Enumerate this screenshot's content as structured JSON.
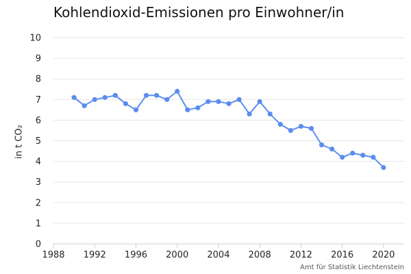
{
  "chart_data": {
    "type": "line",
    "title": "Kohlendioxid-Emissionen pro Einwohner/in",
    "xlabel": "",
    "ylabel": "in t CO₂",
    "source": "Amt für Statistik Liechtenstein",
    "xlim": [
      1988,
      2022
    ],
    "ylim": [
      0,
      10
    ],
    "x_ticks": [
      1988,
      1992,
      1996,
      2000,
      2004,
      2008,
      2012,
      2016,
      2020
    ],
    "y_ticks": [
      0,
      1,
      2,
      3,
      4,
      5,
      6,
      7,
      8,
      9,
      10
    ],
    "grid": "horizontal",
    "color": "#5b8def",
    "series": [
      {
        "x": [
          1990,
          1991,
          1992,
          1993,
          1994,
          1995,
          1996,
          1997,
          1998,
          1999,
          2000,
          2001,
          2002,
          2003,
          2004,
          2005,
          2006,
          2007,
          2008,
          2009,
          2010,
          2011,
          2012,
          2013,
          2014,
          2015,
          2016,
          2017,
          2018,
          2019,
          2020
        ],
        "y": [
          7.1,
          6.7,
          7.0,
          7.1,
          7.2,
          6.8,
          6.5,
          7.2,
          7.2,
          7.0,
          7.4,
          6.5,
          6.6,
          6.9,
          6.9,
          6.8,
          7.0,
          6.3,
          6.9,
          6.3,
          5.8,
          5.5,
          5.7,
          5.6,
          4.8,
          4.6,
          4.2,
          4.4,
          4.3,
          4.2,
          3.7
        ]
      }
    ]
  }
}
